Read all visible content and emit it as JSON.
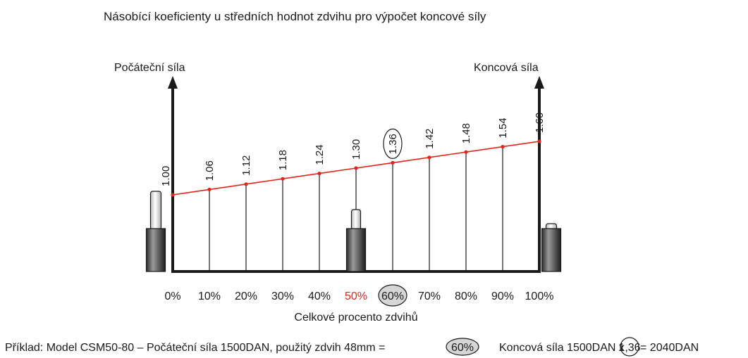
{
  "title": "Násobící koeficienty u středních hodnot zdvihu pro výpočet koncové síly",
  "left_axis_label": "Počáteční síla",
  "right_axis_label": "Koncová síla",
  "xlabel": "Celkové procento zdvihů",
  "line_color": "#e3261b",
  "highlight_color": "#e3261b",
  "chart_data": {
    "type": "line",
    "title": "Násobící koeficienty u středních hodnot zdvihu pro výpočet koncové síly",
    "xlabel": "Celkové procento zdvihů",
    "ylabel_left": "Počáteční síla",
    "ylabel_right": "Koncová síla",
    "x": [
      0,
      10,
      20,
      30,
      40,
      50,
      60,
      70,
      80,
      90,
      100
    ],
    "tick_labels": [
      "0%",
      "10%",
      "20%",
      "30%",
      "40%",
      "50%",
      "60%",
      "70%",
      "80%",
      "90%",
      "100%"
    ],
    "values": [
      1.0,
      1.06,
      1.12,
      1.18,
      1.24,
      1.3,
      1.36,
      1.42,
      1.48,
      1.54,
      1.6
    ],
    "value_labels": [
      "1.00",
      "1.06",
      "1.12",
      "1.18",
      "1.24",
      "1.30",
      "1.36",
      "1.42",
      "1.48",
      "1.54",
      "1.60"
    ],
    "xlim": [
      0,
      100
    ],
    "ylim": [
      0.6,
      1.7
    ],
    "highlight_red_index": 5,
    "circled_index": 6,
    "cylinders": [
      {
        "x": 0,
        "extension": "long"
      },
      {
        "x": 50,
        "extension": "medium"
      },
      {
        "x": 100,
        "extension": "short"
      }
    ]
  },
  "example": {
    "part1": "Příklad: Model CSM50-80 – Počáteční síla 1500DAN, použitý zdvih 48mm =",
    "circled_pct": "60%",
    "part2": "Koncová síla  1500DAN x",
    "circled_coef": "1,36",
    "part3": "= 2040DAN"
  }
}
